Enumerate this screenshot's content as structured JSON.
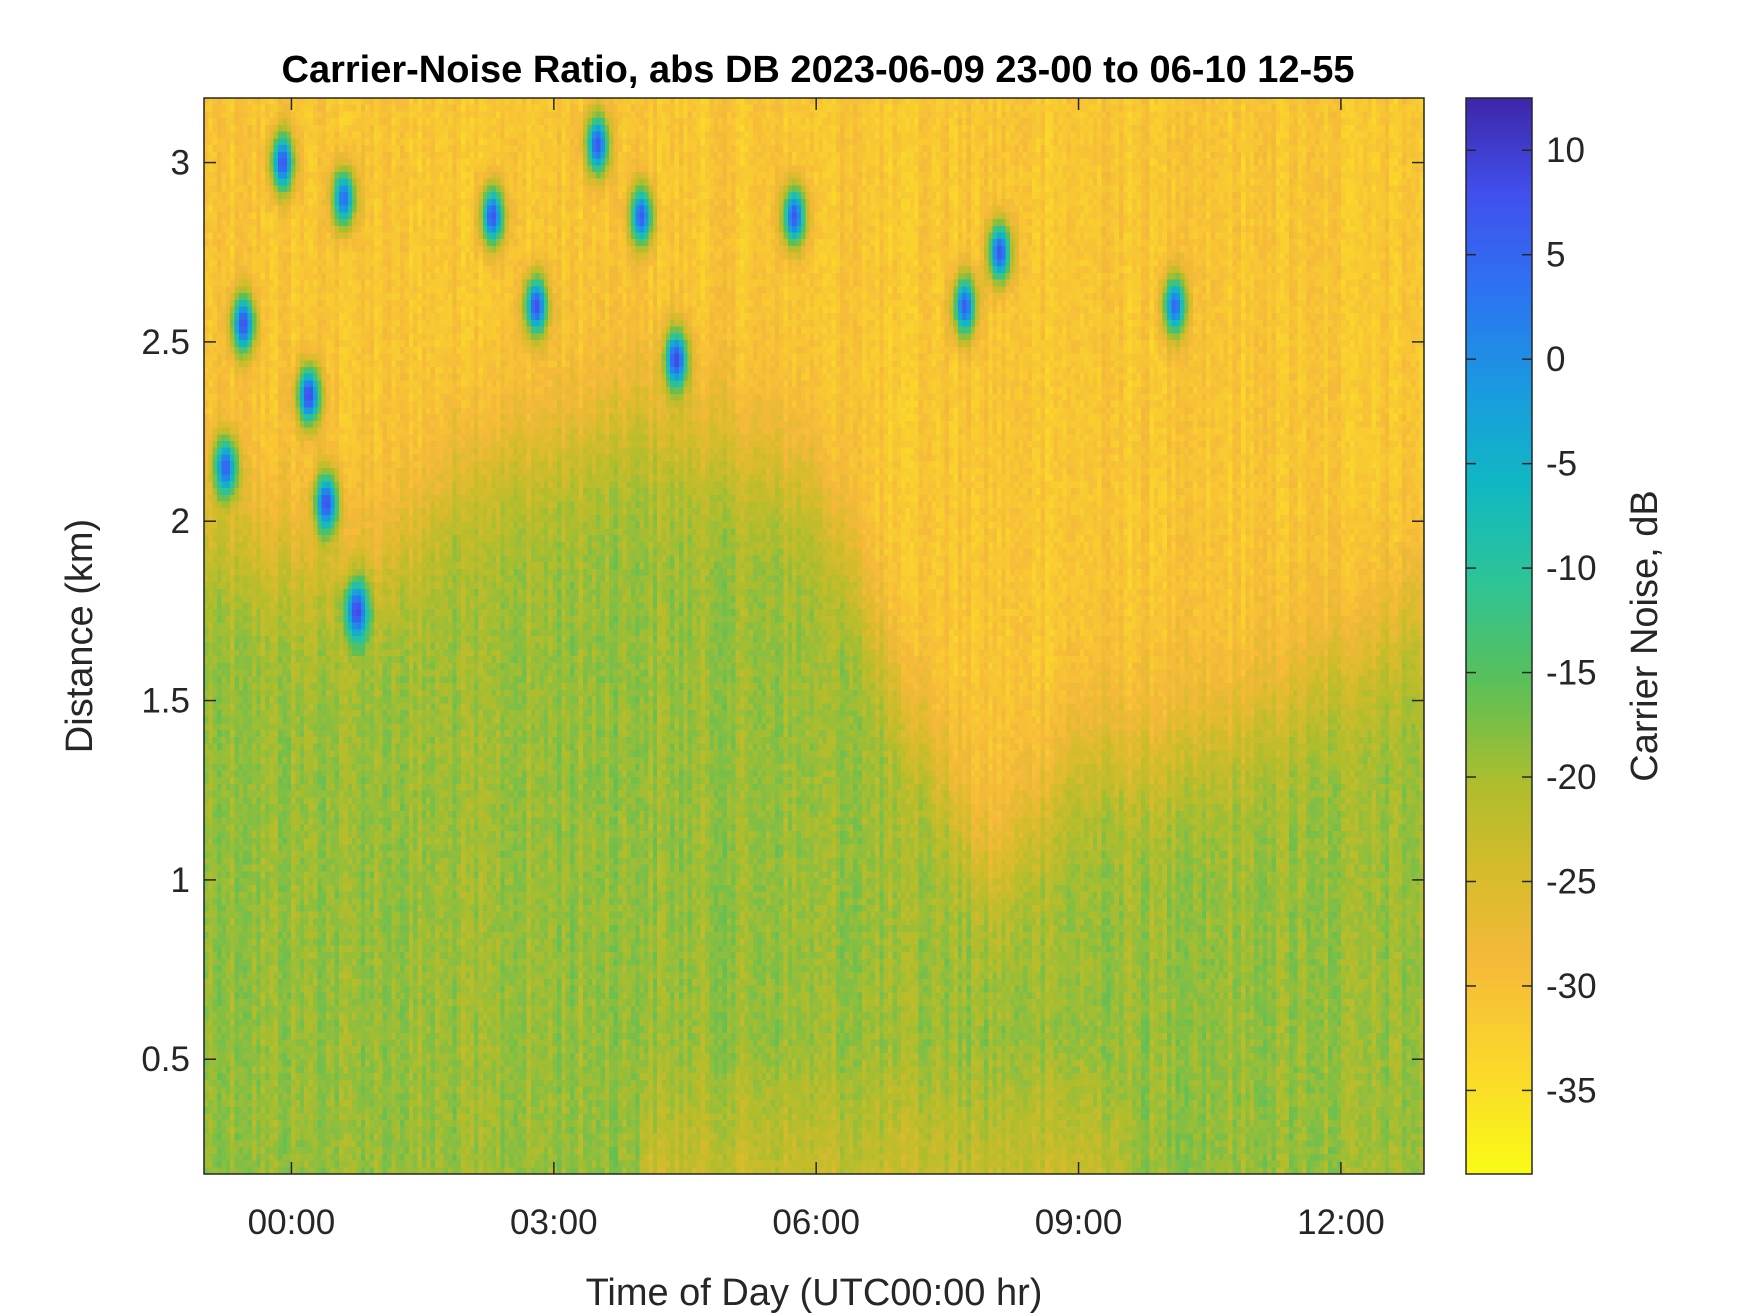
{
  "chart_data": {
    "type": "heatmap",
    "title": "Carrier-Noise Ratio, abs DB 2023-06-09 23-00 to 06-10 12-55",
    "xlabel": "Time of Day (UTC00:00 hr)",
    "ylabel": "Distance (km)",
    "colorbar_label": "Carrier Noise, dB",
    "x_range_hours_rel_midnight": [
      -1.0,
      12.95
    ],
    "y_range_km": [
      0.18,
      3.18
    ],
    "color_range_db": [
      -39,
      12.5
    ],
    "colormap": "parula-reversed (yellow = low, dark blue = high)",
    "x_ticks": [
      {
        "value": 0,
        "label": "00:00"
      },
      {
        "value": 3,
        "label": "03:00"
      },
      {
        "value": 6,
        "label": "06:00"
      },
      {
        "value": 9,
        "label": "09:00"
      },
      {
        "value": 12,
        "label": "12:00"
      }
    ],
    "y_ticks": [
      {
        "value": 0.5,
        "label": "0.5"
      },
      {
        "value": 1.0,
        "label": "1"
      },
      {
        "value": 1.5,
        "label": "1.5"
      },
      {
        "value": 2.0,
        "label": "2"
      },
      {
        "value": 2.5,
        "label": "2.5"
      },
      {
        "value": 3.0,
        "label": "3"
      }
    ],
    "colorbar_ticks": [
      {
        "value": 10,
        "label": "10"
      },
      {
        "value": 5,
        "label": "5"
      },
      {
        "value": 0,
        "label": "0"
      },
      {
        "value": -5,
        "label": "-5"
      },
      {
        "value": -10,
        "label": "-10"
      },
      {
        "value": -15,
        "label": "-15"
      },
      {
        "value": -20,
        "label": "-20"
      },
      {
        "value": -25,
        "label": "-25"
      },
      {
        "value": -30,
        "label": "-30"
      },
      {
        "value": -35,
        "label": "-35"
      }
    ],
    "features": {
      "background_far_range_db": -31,
      "near_range_boundary_layer_db": -19,
      "boundary_layer_top_km": [
        {
          "t": -1.0,
          "km": 2.0
        },
        {
          "t": 0.0,
          "km": 1.9
        },
        {
          "t": 1.0,
          "km": 1.85
        },
        {
          "t": 2.0,
          "km": 2.15
        },
        {
          "t": 3.0,
          "km": 2.2
        },
        {
          "t": 4.0,
          "km": 2.3
        },
        {
          "t": 5.0,
          "km": 2.2
        },
        {
          "t": 6.0,
          "km": 2.1
        },
        {
          "t": 7.0,
          "km": 1.5
        },
        {
          "t": 8.0,
          "km": 1.0
        },
        {
          "t": 9.0,
          "km": 1.35
        },
        {
          "t": 10.0,
          "km": 1.35
        },
        {
          "t": 11.0,
          "km": 1.45
        },
        {
          "t": 12.0,
          "km": 1.6
        },
        {
          "t": 12.95,
          "km": 1.75
        }
      ],
      "strong_return_clusters": [
        {
          "t": -0.55,
          "km": 2.55,
          "db": 8
        },
        {
          "t": -0.75,
          "km": 2.15,
          "db": 6
        },
        {
          "t": 0.2,
          "km": 2.35,
          "db": 9
        },
        {
          "t": 0.4,
          "km": 2.05,
          "db": 8
        },
        {
          "t": 0.75,
          "km": 1.75,
          "db": 9
        },
        {
          "t": 0.6,
          "km": 2.9,
          "db": 4
        },
        {
          "t": -0.1,
          "km": 3.0,
          "db": 7
        },
        {
          "t": 2.3,
          "km": 2.85,
          "db": 7
        },
        {
          "t": 2.8,
          "km": 2.6,
          "db": 8
        },
        {
          "t": 3.5,
          "km": 3.05,
          "db": 7
        },
        {
          "t": 4.0,
          "km": 2.85,
          "db": 6
        },
        {
          "t": 4.4,
          "km": 2.45,
          "db": 9
        },
        {
          "t": 5.75,
          "km": 2.85,
          "db": 7
        },
        {
          "t": 8.1,
          "km": 2.75,
          "db": 7
        },
        {
          "t": 7.7,
          "km": 2.6,
          "db": 6
        },
        {
          "t": 10.1,
          "km": 2.6,
          "db": 5
        }
      ]
    }
  }
}
